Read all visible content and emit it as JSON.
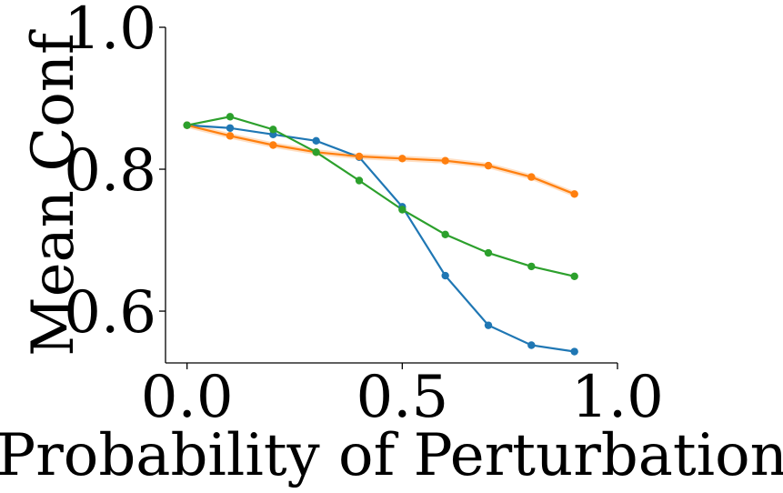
{
  "chart_data": {
    "type": "line",
    "title": "",
    "xlabel": "Probability of Perturbation",
    "ylabel": "Mean Conf",
    "xlim": [
      -0.05,
      1.0
    ],
    "ylim": [
      0.527,
      1.0
    ],
    "xticks": [
      0.0,
      0.5,
      1.0
    ],
    "xtick_labels": [
      "0.0",
      "0.5",
      "1.0"
    ],
    "yticks": [
      0.6,
      0.8,
      1.0
    ],
    "ytick_labels": [
      "0.6",
      "0.8",
      "1.0"
    ],
    "grid": false,
    "legend": "none",
    "x": [
      0.0,
      0.1,
      0.2,
      0.3,
      0.4,
      0.5,
      0.6,
      0.7,
      0.8,
      0.9
    ],
    "series": [
      {
        "color": "#1f77b4",
        "values": [
          0.862,
          0.858,
          0.849,
          0.84,
          0.817,
          0.747,
          0.65,
          0.58,
          0.552,
          0.543
        ]
      },
      {
        "color": "#ff7f0e",
        "values": [
          0.862,
          0.847,
          0.834,
          0.824,
          0.818,
          0.815,
          0.812,
          0.805,
          0.789,
          0.765
        ],
        "band": 0.004
      },
      {
        "color": "#2ca02c",
        "values": [
          0.862,
          0.874,
          0.856,
          0.824,
          0.784,
          0.743,
          0.708,
          0.682,
          0.663,
          0.649
        ]
      }
    ]
  }
}
